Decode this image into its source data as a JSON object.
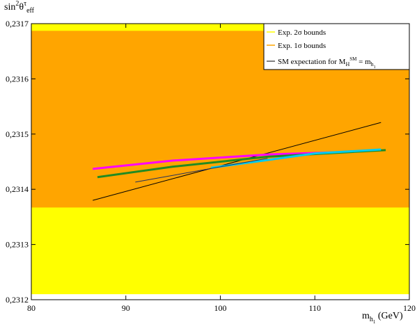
{
  "chart_data": {
    "type": "line",
    "ylabel": [
      "sin",
      "2",
      "θ",
      "τ",
      "eff"
    ],
    "xlabel": [
      "m",
      "h",
      "1",
      " (GeV)"
    ],
    "xlim": [
      80,
      120
    ],
    "xticks": [
      80,
      90,
      100,
      110,
      120
    ],
    "ylim": [
      0.2312,
      0.2317
    ],
    "yticks": [
      {
        "value": 0.2312,
        "label": "0,2312"
      },
      {
        "value": 0.2313,
        "label": "0,2313"
      },
      {
        "value": 0.2314,
        "label": "0,2314"
      },
      {
        "value": 0.2315,
        "label": "0,2315"
      },
      {
        "value": 0.2316,
        "label": "0,2316"
      },
      {
        "value": 0.2317,
        "label": "0,2317"
      }
    ],
    "bands": [
      {
        "name": "Exp. 2σ bounds",
        "color": "#ffff00",
        "range": [
          0.23121,
          0.2317
        ]
      },
      {
        "name": "Exp. 1σ bounds",
        "color": "#ffa500",
        "range": [
          0.231367,
          0.231687
        ]
      }
    ],
    "sm_label": [
      "SM expectation for M",
      "H",
      "SM",
      " = m",
      "h",
      "1"
    ],
    "series": [
      {
        "color": "#000000",
        "x": [
          86.5,
          117
        ],
        "values": [
          0.23138,
          0.231521
        ]
      },
      {
        "color": "#ff00ff",
        "x": [
          86.5,
          95,
          105,
          114
        ],
        "values": [
          0.231437,
          0.231452,
          0.231463,
          0.231468
        ]
      },
      {
        "color": "#228b22",
        "x": [
          87,
          95,
          105,
          117.5
        ],
        "values": [
          0.231422,
          0.231441,
          0.231459,
          0.231471
        ]
      },
      {
        "color": "#00ccee",
        "x": [
          99,
          105,
          110,
          117
        ],
        "values": [
          0.231439,
          0.231453,
          0.231465,
          0.231472
        ]
      },
      {
        "color": "#203060",
        "x": [
          91,
          105
        ],
        "values": [
          0.231413,
          0.231456
        ]
      }
    ],
    "legend": "upper right"
  }
}
